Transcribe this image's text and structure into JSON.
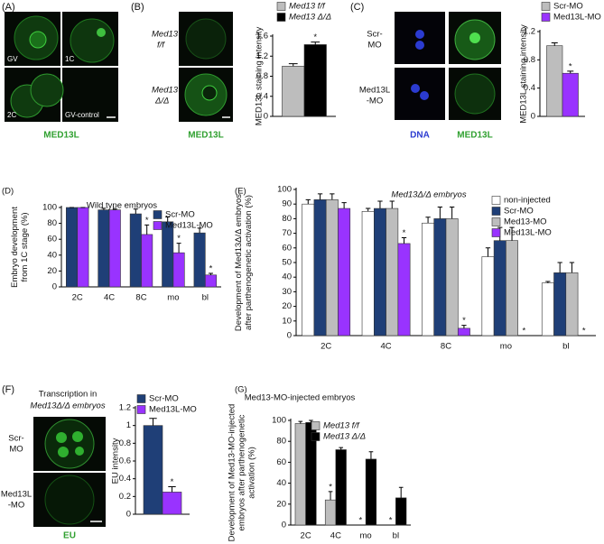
{
  "images": {
    "a": {
      "label": "(A)",
      "tiles": [
        "GV",
        "1C",
        "2C",
        "GV-control"
      ],
      "caption": "MED13L"
    },
    "b": {
      "label": "(B)",
      "rows": [
        [
          "Med13",
          "f/f"
        ],
        [
          "Med13",
          "Δ/Δ"
        ]
      ],
      "caption": "MED13L"
    },
    "c": {
      "label": "(C)",
      "rows": [
        [
          "Scr-",
          "MO"
        ],
        [
          "Med13L",
          "-MO"
        ]
      ],
      "captions": [
        "DNA",
        "MED13L"
      ]
    },
    "f": {
      "label": "(F)",
      "title": [
        "Transcription in",
        "Med13Δ/Δ embryos"
      ],
      "rows": [
        [
          "Scr-",
          "MO"
        ],
        [
          "Med13L",
          "-MO"
        ]
      ],
      "caption": "EU"
    }
  },
  "chart_data": [
    {
      "type": "bar",
      "ylabel": [
        "MED13L staining intensity"
      ],
      "ylim": [
        0,
        1.6
      ],
      "yticks": [
        0,
        0.4,
        0.8,
        1.2,
        1.6
      ],
      "legend_italic": true,
      "categories": [
        null
      ],
      "series": [
        {
          "name": "Med13 f/f",
          "color": "#bdbdbd",
          "values": [
            1.0
          ],
          "errors": [
            0.05
          ],
          "annotations": [
            null
          ]
        },
        {
          "name": "Med13 Δ/Δ",
          "color": "#000000",
          "values": [
            1.43
          ],
          "errors": [
            0.05
          ],
          "annotations": [
            "*"
          ]
        }
      ]
    },
    {
      "type": "bar",
      "ylabel": [
        "MED13L staining intensity"
      ],
      "ylim": [
        0,
        1.2
      ],
      "yticks": [
        0,
        0.4,
        0.8,
        1.2
      ],
      "categories": [
        null
      ],
      "series": [
        {
          "name": "Scr-MO",
          "color": "#bdbdbd",
          "values": [
            1.0
          ],
          "errors": [
            0.04
          ],
          "annotations": [
            null
          ]
        },
        {
          "name": "Med13L-MO",
          "color": "#9933ff",
          "values": [
            0.61
          ],
          "errors": [
            0.03
          ],
          "annotations": [
            "*"
          ]
        }
      ]
    },
    {
      "type": "bar",
      "panel": "(D)",
      "title": [
        "Wild type embryos"
      ],
      "ylabel": [
        "Embryo development",
        "from 1C stage (%)"
      ],
      "ylim": [
        0,
        100
      ],
      "yticks": [
        0,
        20,
        40,
        60,
        80,
        100
      ],
      "categories": [
        "2C",
        "4C",
        "8C",
        "mo",
        "bl"
      ],
      "series": [
        {
          "name": "Scr-MO",
          "color": "#1f3f77",
          "values": [
            100,
            97,
            92,
            82,
            68
          ],
          "errors": [
            0,
            2,
            6,
            6,
            6
          ],
          "annotations": [
            null,
            null,
            null,
            null,
            null
          ]
        },
        {
          "name": "Med13L-MO",
          "color": "#9933ff",
          "values": [
            100,
            97,
            66,
            43,
            15
          ],
          "errors": [
            0,
            1,
            12,
            12,
            2
          ],
          "annotations": [
            null,
            null,
            "*",
            "*",
            "*"
          ]
        }
      ]
    },
    {
      "type": "bar",
      "panel": "(E)",
      "title": [
        "Med13Δ/Δ embryos"
      ],
      "ylabel": [
        "Development of Med13Δ/Δ embryos",
        "after parthenogenetic activation (%)"
      ],
      "ylim": [
        0,
        100
      ],
      "yticks": [
        0,
        10,
        20,
        30,
        40,
        50,
        60,
        70,
        80,
        90,
        100
      ],
      "categories": [
        "2C",
        "4C",
        "8C",
        "mo",
        "bl"
      ],
      "series": [
        {
          "name": "non-injected",
          "color": "#ffffff",
          "values": [
            90,
            85,
            77,
            54,
            36
          ],
          "errors": [
            3,
            2,
            4,
            6,
            1
          ],
          "annotations": [
            null,
            null,
            null,
            null,
            null
          ]
        },
        {
          "name": "Scr-MO",
          "color": "#1f3f77",
          "values": [
            93,
            87,
            80,
            65,
            43
          ],
          "errors": [
            4,
            5,
            8,
            9,
            7
          ],
          "annotations": [
            null,
            null,
            null,
            null,
            null
          ]
        },
        {
          "name": "Med13-MO",
          "color": "#bdbdbd",
          "values": [
            93,
            87,
            80,
            65,
            43
          ],
          "errors": [
            4,
            5,
            8,
            9,
            7
          ],
          "annotations": [
            null,
            null,
            null,
            null,
            null
          ]
        },
        {
          "name": "Med13L-MO",
          "color": "#9933ff",
          "values": [
            87,
            63,
            5,
            0,
            0
          ],
          "errors": [
            4,
            4,
            2,
            0,
            0
          ],
          "annotations": [
            null,
            "*",
            "*",
            "*",
            "*"
          ]
        }
      ]
    },
    {
      "type": "bar",
      "ylabel": [
        "EU intensity"
      ],
      "ylim": [
        0,
        1.2
      ],
      "yticks": [
        0,
        0.2,
        0.4,
        0.6,
        0.8,
        1.0,
        1.2
      ],
      "categories": [
        null
      ],
      "series": [
        {
          "name": "Scr-MO",
          "color": "#1f3f77",
          "values": [
            1.0
          ],
          "errors": [
            0.08
          ],
          "annotations": [
            null
          ]
        },
        {
          "name": "Med13L-MO",
          "color": "#9933ff",
          "values": [
            0.25
          ],
          "errors": [
            0.06
          ],
          "annotations": [
            "*"
          ]
        }
      ]
    },
    {
      "type": "bar",
      "panel": "(G)",
      "title": [
        "Med13-MO-injected embryos"
      ],
      "ylabel": [
        "Development of Med13-MO-injected",
        "embryos after parthenogenetic",
        "activation (%)"
      ],
      "ylim": [
        0,
        100
      ],
      "yticks": [
        0,
        20,
        40,
        60,
        80,
        100
      ],
      "legend_italic": true,
      "categories": [
        "2C",
        "4C",
        "mo",
        "bl"
      ],
      "series": [
        {
          "name": "Med13 f/f",
          "color": "#bdbdbd",
          "values": [
            97,
            24,
            0,
            0
          ],
          "errors": [
            2,
            8,
            0,
            0
          ],
          "annotations": [
            null,
            "*",
            "*",
            "*"
          ]
        },
        {
          "name": "Med13 Δ/Δ",
          "color": "#000000",
          "values": [
            98,
            72,
            63,
            26
          ],
          "errors": [
            2,
            2,
            7,
            10
          ],
          "annotations": [
            null,
            null,
            null,
            null
          ]
        }
      ]
    }
  ]
}
